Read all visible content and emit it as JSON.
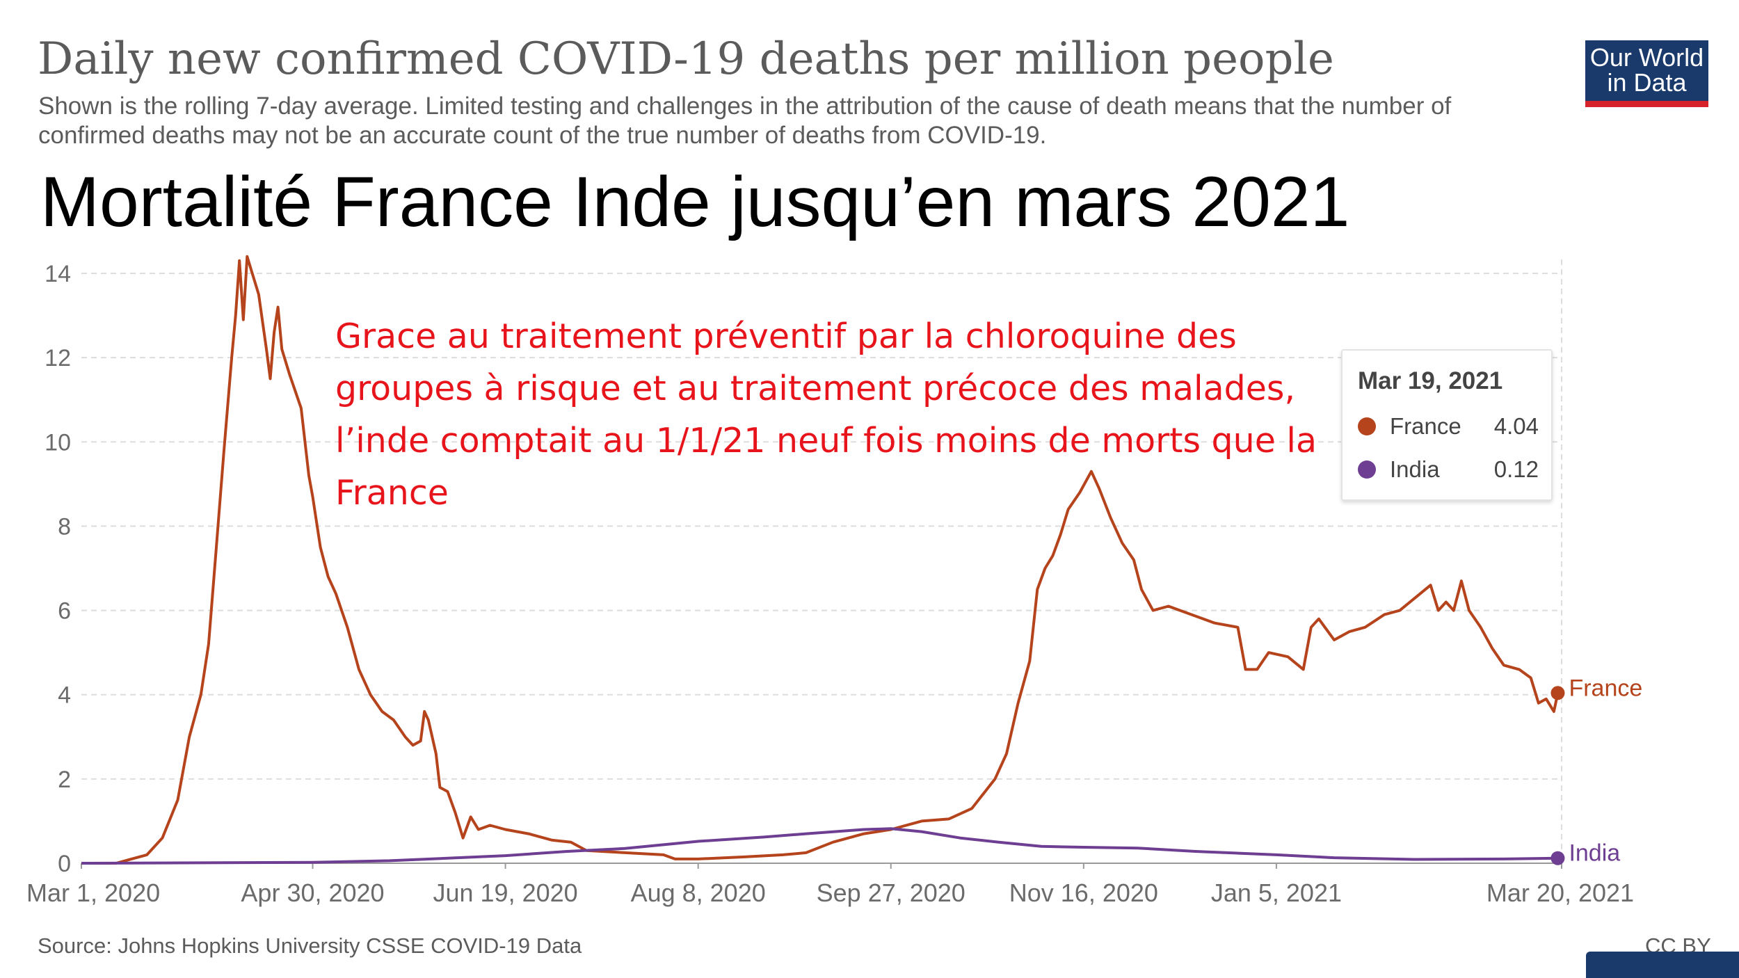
{
  "header": {
    "title": "Daily new confirmed COVID-19 deaths per million people",
    "subtitle": "Shown is the rolling 7-day average. Limited testing and challenges in the attribution of the cause of death means that the number of confirmed deaths may not be an accurate count of the true number of deaths from COVID-19.",
    "headline": "Mortalité France Inde jusqu’en mars 2021",
    "logo_line1": "Our World",
    "logo_line2": "in Data"
  },
  "annotation": "Grace au traitement préventif par la chloroquine des groupes à risque et au traitement précoce des malades, l’inde comptait au 1/1/21 neuf fois moins de morts que la France",
  "tooltip": {
    "date": "Mar 19, 2021",
    "rows": [
      {
        "name": "France",
        "value": "4.04",
        "color": "#b5431b"
      },
      {
        "name": "India",
        "value": "0.12",
        "color": "#6d3e91"
      }
    ]
  },
  "footer": {
    "source": "Source: Johns Hopkins University CSSE COVID-19 Data",
    "license": "CC BY"
  },
  "colors": {
    "france": "#b5431b",
    "india": "#6d3e91",
    "annotation": "#e8141b",
    "logo_bg": "#1a3a6b",
    "logo_accent": "#d6232b"
  },
  "chart_data": {
    "type": "line",
    "title": "Daily new confirmed COVID-19 deaths per million people",
    "xlabel": "",
    "ylabel": "",
    "x_range": [
      "2020-03-01",
      "2021-03-20"
    ],
    "ylim": [
      0,
      14
    ],
    "y_ticks": [
      0,
      2,
      4,
      6,
      8,
      10,
      12,
      14
    ],
    "x_ticks": [
      {
        "date": "2020-03-01",
        "label": "Mar 1, 2020"
      },
      {
        "date": "2020-04-30",
        "label": "Apr 30, 2020"
      },
      {
        "date": "2020-06-19",
        "label": "Jun 19, 2020"
      },
      {
        "date": "2020-08-08",
        "label": "Aug 8, 2020"
      },
      {
        "date": "2020-09-27",
        "label": "Sep 27, 2020"
      },
      {
        "date": "2020-11-16",
        "label": "Nov 16, 2020"
      },
      {
        "date": "2021-01-05",
        "label": "Jan 5, 2021"
      },
      {
        "date": "2021-03-20",
        "label": "Mar 20, 2021"
      }
    ],
    "grid": true,
    "series": [
      {
        "name": "France",
        "color": "#b5431b",
        "end_label": "France",
        "points": [
          [
            "2020-03-01",
            0
          ],
          [
            "2020-03-10",
            0
          ],
          [
            "2020-03-14",
            0.1
          ],
          [
            "2020-03-18",
            0.2
          ],
          [
            "2020-03-22",
            0.6
          ],
          [
            "2020-03-26",
            1.5
          ],
          [
            "2020-03-29",
            3
          ],
          [
            "2020-04-01",
            4
          ],
          [
            "2020-04-03",
            5.2
          ],
          [
            "2020-04-05",
            7.5
          ],
          [
            "2020-04-07",
            9.8
          ],
          [
            "2020-04-09",
            12
          ],
          [
            "2020-04-10",
            13
          ],
          [
            "2020-04-11",
            14.3
          ],
          [
            "2020-04-12",
            12.9
          ],
          [
            "2020-04-13",
            14.4
          ],
          [
            "2020-04-14",
            14.1
          ],
          [
            "2020-04-16",
            13.5
          ],
          [
            "2020-04-18",
            12.2
          ],
          [
            "2020-04-19",
            11.5
          ],
          [
            "2020-04-20",
            12.6
          ],
          [
            "2020-04-21",
            13.2
          ],
          [
            "2020-04-22",
            12.2
          ],
          [
            "2020-04-24",
            11.6
          ],
          [
            "2020-04-27",
            10.8
          ],
          [
            "2020-04-29",
            9.2
          ],
          [
            "2020-04-30",
            8.7
          ],
          [
            "2020-05-02",
            7.5
          ],
          [
            "2020-05-04",
            6.8
          ],
          [
            "2020-05-06",
            6.4
          ],
          [
            "2020-05-09",
            5.6
          ],
          [
            "2020-05-12",
            4.6
          ],
          [
            "2020-05-15",
            4
          ],
          [
            "2020-05-18",
            3.6
          ],
          [
            "2020-05-21",
            3.4
          ],
          [
            "2020-05-24",
            3
          ],
          [
            "2020-05-26",
            2.8
          ],
          [
            "2020-05-28",
            2.9
          ],
          [
            "2020-05-29",
            3.6
          ],
          [
            "2020-05-30",
            3.4
          ],
          [
            "2020-06-01",
            2.6
          ],
          [
            "2020-06-02",
            1.8
          ],
          [
            "2020-06-04",
            1.7
          ],
          [
            "2020-06-06",
            1.2
          ],
          [
            "2020-06-08",
            0.6
          ],
          [
            "2020-06-10",
            1.1
          ],
          [
            "2020-06-12",
            0.8
          ],
          [
            "2020-06-15",
            0.9
          ],
          [
            "2020-06-19",
            0.8
          ],
          [
            "2020-06-25",
            0.7
          ],
          [
            "2020-07-01",
            0.55
          ],
          [
            "2020-07-06",
            0.5
          ],
          [
            "2020-07-10",
            0.3
          ],
          [
            "2020-07-20",
            0.25
          ],
          [
            "2020-07-30",
            0.2
          ],
          [
            "2020-08-02",
            0.1
          ],
          [
            "2020-08-08",
            0.1
          ],
          [
            "2020-08-20",
            0.15
          ],
          [
            "2020-08-30",
            0.2
          ],
          [
            "2020-09-05",
            0.25
          ],
          [
            "2020-09-12",
            0.5
          ],
          [
            "2020-09-20",
            0.7
          ],
          [
            "2020-09-27",
            0.8
          ],
          [
            "2020-10-05",
            1.0
          ],
          [
            "2020-10-12",
            1.05
          ],
          [
            "2020-10-18",
            1.3
          ],
          [
            "2020-10-24",
            2.0
          ],
          [
            "2020-10-27",
            2.6
          ],
          [
            "2020-10-30",
            3.8
          ],
          [
            "2020-11-02",
            4.8
          ],
          [
            "2020-11-04",
            6.5
          ],
          [
            "2020-11-06",
            7.0
          ],
          [
            "2020-11-08",
            7.3
          ],
          [
            "2020-11-10",
            7.8
          ],
          [
            "2020-11-12",
            8.4
          ],
          [
            "2020-11-15",
            8.8
          ],
          [
            "2020-11-18",
            9.3
          ],
          [
            "2020-11-20",
            8.9
          ],
          [
            "2020-11-23",
            8.2
          ],
          [
            "2020-11-26",
            7.6
          ],
          [
            "2020-11-29",
            7.2
          ],
          [
            "2020-12-01",
            6.5
          ],
          [
            "2020-12-04",
            6.0
          ],
          [
            "2020-12-08",
            6.1
          ],
          [
            "2020-12-14",
            5.9
          ],
          [
            "2020-12-20",
            5.7
          ],
          [
            "2020-12-26",
            5.6
          ],
          [
            "2020-12-28",
            4.6
          ],
          [
            "2020-12-31",
            4.6
          ],
          [
            "2021-01-03",
            5.0
          ],
          [
            "2021-01-08",
            4.9
          ],
          [
            "2021-01-12",
            4.6
          ],
          [
            "2021-01-14",
            5.6
          ],
          [
            "2021-01-16",
            5.8
          ],
          [
            "2021-01-20",
            5.3
          ],
          [
            "2021-01-24",
            5.5
          ],
          [
            "2021-01-28",
            5.6
          ],
          [
            "2021-02-02",
            5.9
          ],
          [
            "2021-02-06",
            6.0
          ],
          [
            "2021-02-10",
            6.3
          ],
          [
            "2021-02-14",
            6.6
          ],
          [
            "2021-02-16",
            6.0
          ],
          [
            "2021-02-18",
            6.2
          ],
          [
            "2021-02-20",
            6.0
          ],
          [
            "2021-02-22",
            6.7
          ],
          [
            "2021-02-24",
            6.0
          ],
          [
            "2021-02-27",
            5.6
          ],
          [
            "2021-03-02",
            5.1
          ],
          [
            "2021-03-05",
            4.7
          ],
          [
            "2021-03-09",
            4.6
          ],
          [
            "2021-03-12",
            4.4
          ],
          [
            "2021-03-14",
            3.8
          ],
          [
            "2021-03-16",
            3.9
          ],
          [
            "2021-03-18",
            3.6
          ],
          [
            "2021-03-19",
            4.04
          ]
        ]
      },
      {
        "name": "India",
        "color": "#6d3e91",
        "end_label": "India",
        "points": [
          [
            "2020-03-01",
            0
          ],
          [
            "2020-04-30",
            0.02
          ],
          [
            "2020-05-20",
            0.06
          ],
          [
            "2020-06-19",
            0.18
          ],
          [
            "2020-07-05",
            0.28
          ],
          [
            "2020-07-20",
            0.35
          ],
          [
            "2020-08-08",
            0.52
          ],
          [
            "2020-08-25",
            0.62
          ],
          [
            "2020-09-05",
            0.7
          ],
          [
            "2020-09-20",
            0.8
          ],
          [
            "2020-09-27",
            0.82
          ],
          [
            "2020-10-05",
            0.75
          ],
          [
            "2020-10-15",
            0.6
          ],
          [
            "2020-10-25",
            0.5
          ],
          [
            "2020-11-05",
            0.4
          ],
          [
            "2020-11-16",
            0.38
          ],
          [
            "2020-11-30",
            0.36
          ],
          [
            "2020-12-15",
            0.28
          ],
          [
            "2021-01-05",
            0.2
          ],
          [
            "2021-01-20",
            0.13
          ],
          [
            "2021-02-10",
            0.09
          ],
          [
            "2021-03-05",
            0.1
          ],
          [
            "2021-03-19",
            0.12
          ]
        ]
      }
    ]
  }
}
